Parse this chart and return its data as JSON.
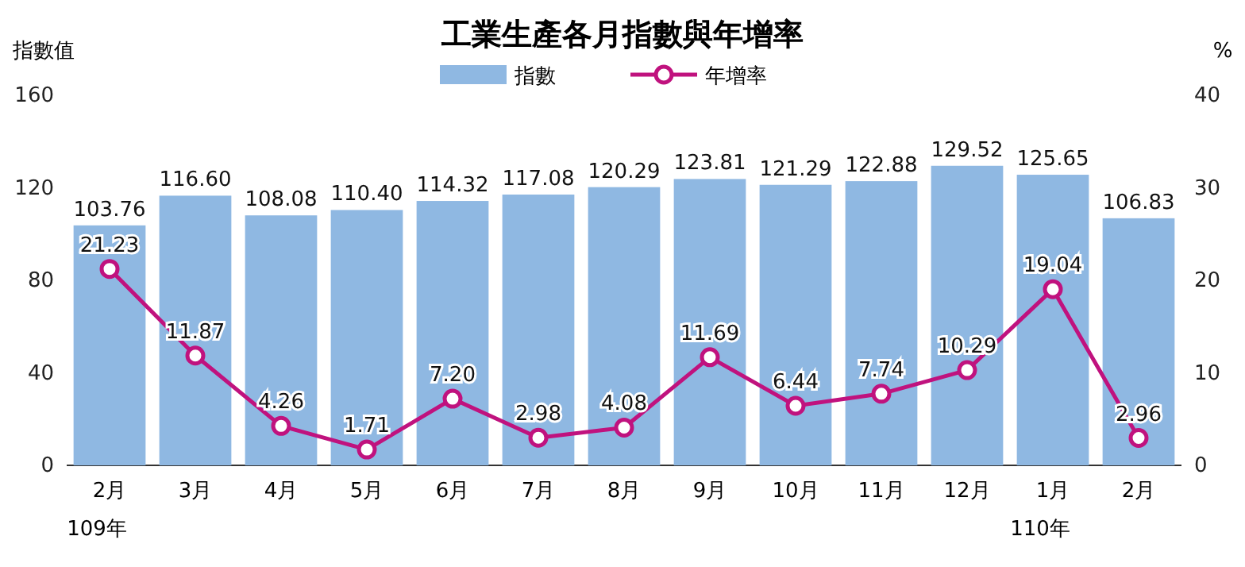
{
  "chart_data": {
    "type": "bar",
    "title": "工業生產各月指數與年增率",
    "ylabel": "指數值",
    "y2label": "%",
    "categories": [
      "2月\n109年",
      "3月",
      "4月",
      "5月",
      "6月",
      "7月",
      "8月",
      "9月",
      "10月",
      "11月",
      "12月",
      "1月\n110年",
      "2月"
    ],
    "series": [
      {
        "name": "指數",
        "color": "#8fb8e2",
        "values": [
          103.76,
          116.6,
          108.08,
          110.4,
          114.32,
          117.08,
          120.29,
          123.81,
          121.29,
          122.88,
          129.52,
          125.65,
          106.83
        ],
        "value_labels": [
          "103.76",
          "116.60",
          "108.08",
          "110.40",
          "114.32",
          "117.08",
          "120.29",
          "123.81",
          "121.29",
          "122.88",
          "129.52",
          "125.65",
          "106.83"
        ]
      },
      {
        "name": "年增率",
        "type": "line",
        "axis": "y2",
        "color": "#c0127e",
        "marker": "circle",
        "values": [
          21.23,
          11.87,
          4.26,
          1.71,
          7.2,
          2.98,
          4.08,
          11.69,
          6.44,
          7.74,
          10.29,
          19.04,
          2.96
        ],
        "value_labels": [
          "21.23",
          "11.87",
          "4.26",
          "1.71",
          "7.20",
          "2.98",
          "4.08",
          "11.69",
          "6.44",
          "7.74",
          "10.29",
          "19.04",
          "2.96"
        ]
      }
    ],
    "ylim": [
      0,
      160
    ],
    "yticks": [
      0,
      40,
      80,
      120,
      160
    ],
    "y2lim": [
      0,
      40
    ],
    "y2ticks": [
      0,
      10,
      20,
      30,
      40
    ],
    "legend": "top",
    "grid": false
  }
}
